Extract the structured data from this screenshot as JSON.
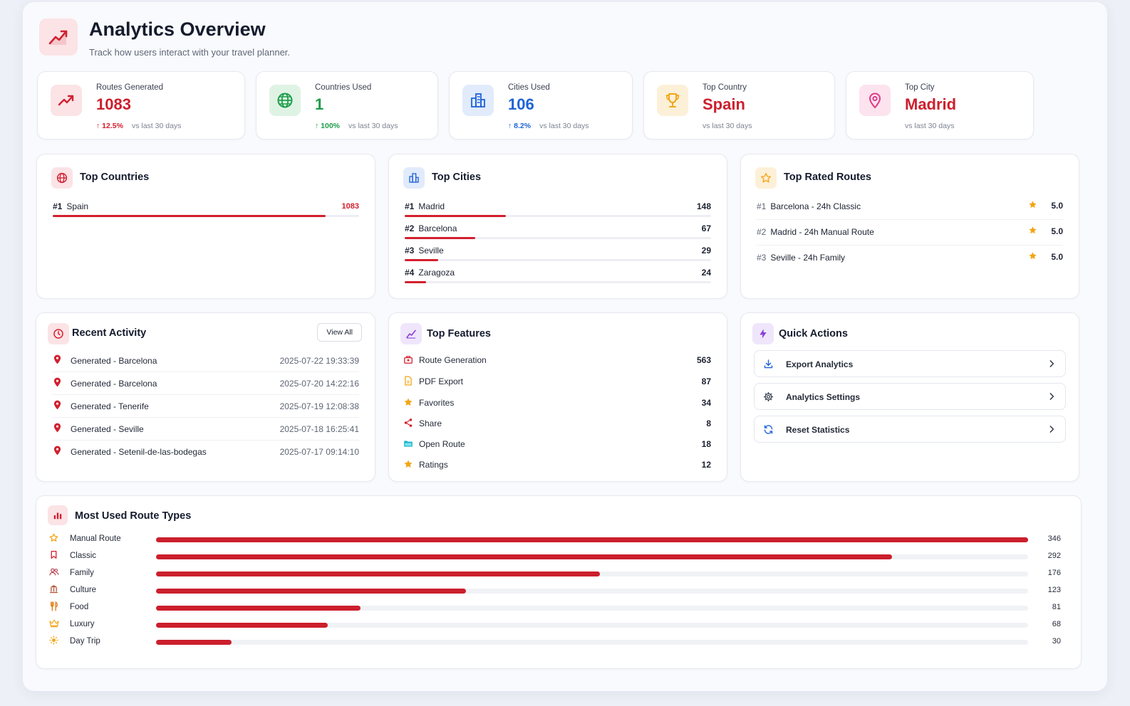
{
  "header": {
    "title": "Analytics Overview",
    "subtitle": "Track how users interact with your travel planner."
  },
  "colors": {
    "accent": "#d2202f",
    "green": "#1e9e4a",
    "blue": "#1f63d6",
    "orange": "#f2a516"
  },
  "stats": [
    {
      "label": "Routes Generated",
      "value": "1083",
      "change": "↑ 12.5%",
      "period": "vs last 30 days",
      "icon": "trending-up-icon"
    },
    {
      "label": "Countries Used",
      "value": "1",
      "change": "↑ 100%",
      "period": "vs last 30 days",
      "icon": "globe-icon"
    },
    {
      "label": "Cities Used",
      "value": "106",
      "change": "↑ 8.2%",
      "period": "vs last 30 days",
      "icon": "buildings-icon"
    },
    {
      "label": "Top Country",
      "value": "Spain",
      "change": "",
      "period": "vs last 30 days",
      "icon": "trophy-icon"
    },
    {
      "label": "Top City",
      "value": "Madrid",
      "change": "",
      "period": "vs last 30 days",
      "icon": "map-pin-icon"
    }
  ],
  "top_countries": {
    "title": "Top Countries",
    "items": [
      {
        "rank": "#1",
        "name": "Spain",
        "count": "1083",
        "share": 0.89
      }
    ]
  },
  "top_cities": {
    "title": "Top Cities",
    "items": [
      {
        "rank": "#1",
        "name": "Madrid",
        "count": "148",
        "share": 0.33
      },
      {
        "rank": "#2",
        "name": "Barcelona",
        "count": "67",
        "share": 0.23
      },
      {
        "rank": "#3",
        "name": "Seville",
        "count": "29",
        "share": 0.11
      },
      {
        "rank": "#4",
        "name": "Zaragoza",
        "count": "24",
        "share": 0.07
      }
    ]
  },
  "top_rated": {
    "title": "Top Rated Routes",
    "items": [
      {
        "rank": "#1",
        "name": "Barcelona - 24h Classic",
        "score": "5.0"
      },
      {
        "rank": "#2",
        "name": "Madrid - 24h Manual Route",
        "score": "5.0"
      },
      {
        "rank": "#3",
        "name": "Seville - 24h Family",
        "score": "5.0"
      }
    ]
  },
  "recent_activity": {
    "title": "Recent Activity",
    "view_all": "View All",
    "items": [
      {
        "text": "Generated - Barcelona",
        "time": "2025-07-22 19:33:39"
      },
      {
        "text": "Generated - Barcelona",
        "time": "2025-07-20 14:22:16"
      },
      {
        "text": "Generated - Tenerife",
        "time": "2025-07-19 12:08:38"
      },
      {
        "text": "Generated - Seville",
        "time": "2025-07-18 16:25:41"
      },
      {
        "text": "Generated - Setenil-de-las-bodegas",
        "time": "2025-07-17 09:14:10"
      }
    ]
  },
  "top_features": {
    "title": "Top Features",
    "items": [
      {
        "name": "Route Generation",
        "count": "563",
        "icon": "route-icon"
      },
      {
        "name": "PDF Export",
        "count": "87",
        "icon": "file-icon"
      },
      {
        "name": "Favorites",
        "count": "34",
        "icon": "star-icon"
      },
      {
        "name": "Share",
        "count": "8",
        "icon": "share-icon"
      },
      {
        "name": "Open Route",
        "count": "18",
        "icon": "folder-open-icon"
      },
      {
        "name": "Ratings",
        "count": "12",
        "icon": "star-icon"
      }
    ]
  },
  "quick_actions": {
    "title": "Quick Actions",
    "items": [
      {
        "label": "Export Analytics",
        "icon": "download-icon"
      },
      {
        "label": "Analytics Settings",
        "icon": "gear-icon"
      },
      {
        "label": "Reset Statistics",
        "icon": "refresh-icon"
      }
    ]
  },
  "route_types": {
    "title": "Most Used Route Types",
    "max": 346,
    "items": [
      {
        "name": "Manual Route",
        "count": 346,
        "icon": "star-icon"
      },
      {
        "name": "Classic",
        "count": 292,
        "icon": "bookmark-icon"
      },
      {
        "name": "Family",
        "count": 176,
        "icon": "users-icon"
      },
      {
        "name": "Culture",
        "count": 123,
        "icon": "museum-icon"
      },
      {
        "name": "Food",
        "count": 81,
        "icon": "utensils-icon"
      },
      {
        "name": "Luxury",
        "count": 68,
        "icon": "crown-icon"
      },
      {
        "name": "Day Trip",
        "count": 30,
        "icon": "sun-icon"
      }
    ]
  }
}
